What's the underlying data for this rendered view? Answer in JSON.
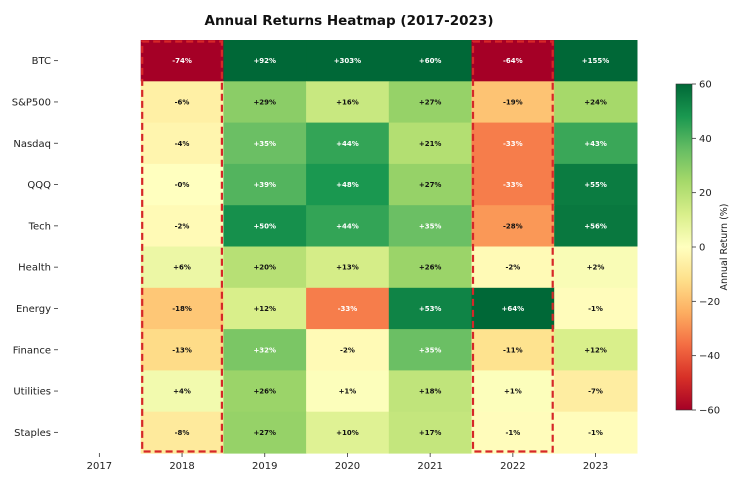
{
  "chart_data": {
    "type": "heatmap",
    "title": "Annual Returns Heatmap (2017-2023)",
    "rows": [
      "BTC",
      "S&P500",
      "Nasdaq",
      "QQQ",
      "Tech",
      "Health",
      "Energy",
      "Finance",
      "Utilities",
      "Staples"
    ],
    "columns": [
      "2017",
      "2018",
      "2019",
      "2020",
      "2021",
      "2022",
      "2023"
    ],
    "values": [
      [
        null,
        -74,
        92,
        303,
        60,
        -64,
        155
      ],
      [
        null,
        -6,
        29,
        16,
        27,
        -19,
        24
      ],
      [
        null,
        -4,
        35,
        44,
        21,
        -33,
        43
      ],
      [
        null,
        0,
        39,
        48,
        27,
        -33,
        55
      ],
      [
        null,
        -2,
        50,
        44,
        35,
        -28,
        56
      ],
      [
        null,
        6,
        20,
        13,
        26,
        -2,
        2
      ],
      [
        null,
        -18,
        12,
        -33,
        53,
        64,
        -1
      ],
      [
        null,
        -13,
        32,
        -2,
        35,
        -11,
        12
      ],
      [
        null,
        4,
        26,
        1,
        18,
        1,
        -7
      ],
      [
        null,
        -8,
        27,
        10,
        17,
        -1,
        -1
      ]
    ],
    "labels": [
      [
        "",
        "-74%",
        "+92%",
        "+303%",
        "+60%",
        "-64%",
        "+155%"
      ],
      [
        "",
        "-6%",
        "+29%",
        "+16%",
        "+27%",
        "-19%",
        "+24%"
      ],
      [
        "",
        "-4%",
        "+35%",
        "+44%",
        "+21%",
        "-33%",
        "+43%"
      ],
      [
        "",
        "-0%",
        "+39%",
        "+48%",
        "+27%",
        "-33%",
        "+55%"
      ],
      [
        "",
        "-2%",
        "+50%",
        "+44%",
        "+35%",
        "-28%",
        "+56%"
      ],
      [
        "",
        "+6%",
        "+20%",
        "+13%",
        "+26%",
        "-2%",
        "+2%"
      ],
      [
        "",
        "-18%",
        "+12%",
        "-33%",
        "+53%",
        "+64%",
        "-1%"
      ],
      [
        "",
        "-13%",
        "+32%",
        "-2%",
        "+35%",
        "-11%",
        "+12%"
      ],
      [
        "",
        "+4%",
        "+26%",
        "+1%",
        "+18%",
        "+1%",
        "-7%"
      ],
      [
        "",
        "-8%",
        "+27%",
        "+10%",
        "+17%",
        "-1%",
        "-1%"
      ]
    ],
    "colorbar": {
      "label": "Annual Return (%)",
      "min": -60,
      "max": 60,
      "ticks": [
        60,
        40,
        20,
        0,
        -20,
        -40,
        -60
      ],
      "tick_labels": [
        "60",
        "40",
        "20",
        "0",
        "−20",
        "−40",
        "−60"
      ],
      "colormap": "RdYlGn"
    },
    "highlighted_columns": [
      "2018",
      "2022"
    ],
    "highlight_color": "#d62728"
  }
}
